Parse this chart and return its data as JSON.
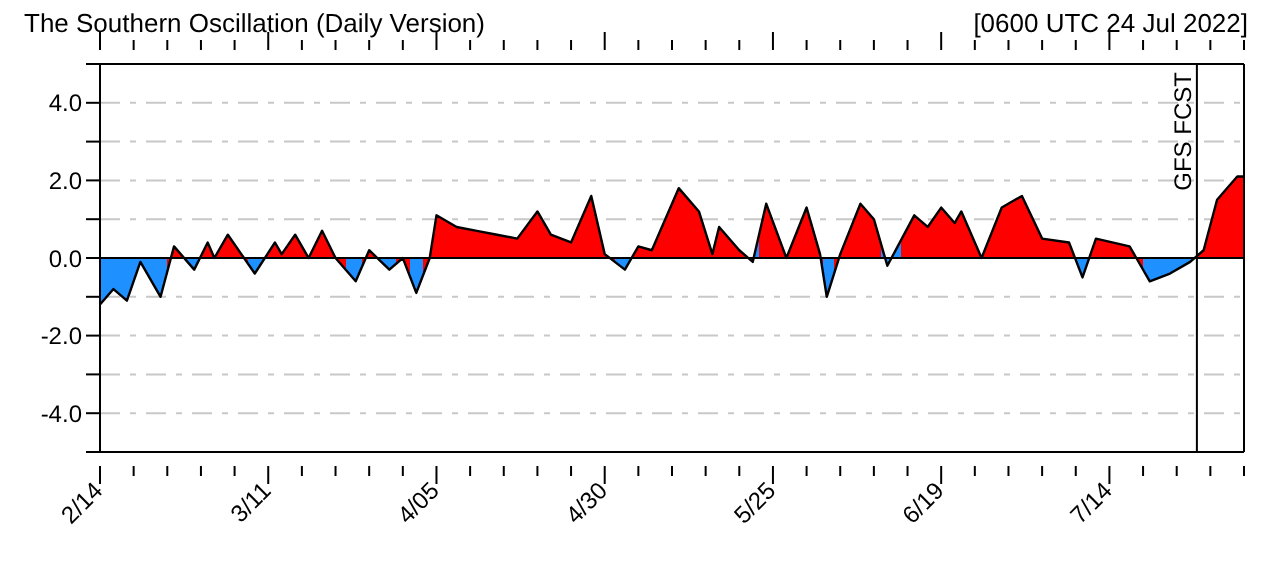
{
  "chart_data": {
    "type": "area",
    "title": "The Southern Oscillation (Daily Version)",
    "subtitle": "[0600 UTC 24 Jul 2022]",
    "x": [
      "--02-14",
      "--02-16",
      "--02-18",
      "--02-20",
      "--02-23",
      "--02-25",
      "--02-28",
      "--03-02",
      "--03-03",
      "--03-05",
      "--03-07",
      "--03-09",
      "--03-12",
      "--03-13",
      "--03-15",
      "--03-17",
      "--03-19",
      "--03-21",
      "--03-24",
      "--03-26",
      "--03-29",
      "--03-31",
      "--04-02",
      "--04-04",
      "--04-05",
      "--04-08",
      "--04-11",
      "--04-14",
      "--04-17",
      "--04-20",
      "--04-22",
      "--04-25",
      "--04-28",
      "--04-30",
      "--05-03",
      "--05-05",
      "--05-07",
      "--05-11",
      "--05-14",
      "--05-16",
      "--05-17",
      "--05-20",
      "--05-22",
      "--05-24",
      "--05-27",
      "--05-30",
      "--06-01",
      "--06-02",
      "--06-04",
      "--06-07",
      "--06-09",
      "--06-11",
      "--06-15",
      "--06-17",
      "--06-19",
      "--06-21",
      "--06-22",
      "--06-25",
      "--06-28",
      "--07-01",
      "--07-04",
      "--07-08",
      "--07-10",
      "--07-12",
      "--07-17",
      "--07-18",
      "--07-20",
      "--07-23",
      "--07-26",
      "--07-28",
      "--07-30",
      "--08-02",
      "--08-03"
    ],
    "series": [
      {
        "values": [
          -1.2,
          -0.8,
          -1.1,
          -0.1,
          -1.0,
          0.3,
          -0.3,
          0.4,
          0.0,
          0.6,
          0.1,
          -0.4,
          0.4,
          0.1,
          0.6,
          0.0,
          0.7,
          0.0,
          -0.6,
          0.2,
          -0.3,
          0.0,
          -0.9,
          0.0,
          1.1,
          0.8,
          0.7,
          0.6,
          0.5,
          1.2,
          0.6,
          0.4,
          1.6,
          0.1,
          -0.3,
          0.3,
          0.2,
          1.8,
          1.2,
          0.1,
          0.8,
          0.2,
          -0.1,
          1.4,
          0.0,
          1.3,
          0.1,
          -1.0,
          0.1,
          1.4,
          1.0,
          -0.2,
          1.1,
          0.8,
          1.3,
          0.9,
          1.2,
          0.0,
          1.3,
          1.6,
          0.5,
          0.4,
          -0.5,
          0.5,
          0.3,
          0.0,
          -0.6,
          -0.4,
          -0.1,
          0.2,
          1.5,
          2.1,
          2.1
        ],
        "colors": [
          "#1e90ff",
          "#1e90ff",
          "#1e90ff",
          "#1e90ff",
          "#1e90ff",
          "#ff0000",
          "#1e90ff",
          "#ff0000",
          "#ff0000",
          "#ff0000",
          "#ff0000",
          "#1e90ff",
          "#ff0000",
          "#ff0000",
          "#ff0000",
          "#ff0000",
          "#ff0000",
          "#ff0000",
          "#1e90ff",
          "#ff0000",
          "#1e90ff",
          "#ff0000",
          "#1e90ff",
          "#ff0000",
          "#ff0000",
          "#ff0000",
          "#ff0000",
          "#ff0000",
          "#ff0000",
          "#ff0000",
          "#ff0000",
          "#ff0000",
          "#ff0000",
          "#ff0000",
          "#1e90ff",
          "#ff0000",
          "#ff0000",
          "#ff0000",
          "#ff0000",
          "#ff0000",
          "#ff0000",
          "#ff0000",
          "#1e90ff",
          "#ff0000",
          "#ff0000",
          "#ff0000",
          "#ff0000",
          "#1e90ff",
          "#ff0000",
          "#ff0000",
          "#ff0000",
          "#1e90ff",
          "#ff0000",
          "#ff0000",
          "#ff0000",
          "#ff0000",
          "#ff0000",
          "#ff0000",
          "#ff0000",
          "#ff0000",
          "#ff0000",
          "#ff0000",
          "#1e90ff",
          "#ff0000",
          "#ff0000",
          "#ff0000",
          "#1e90ff",
          "#1e90ff",
          "#1e90ff",
          "#ff0000",
          "#ff0000",
          "#ff0000",
          "#ff0000"
        ]
      }
    ],
    "xlim": [
      "--02-14",
      "--08-03"
    ],
    "xticks": [
      {
        "value": "--02-14",
        "label": "2/14"
      },
      {
        "value": "--02-19",
        "label": null
      },
      {
        "value": "--02-24",
        "label": null
      },
      {
        "value": "--03-01",
        "label": null
      },
      {
        "value": "--03-06",
        "label": null
      },
      {
        "value": "--03-11",
        "label": "3/11"
      },
      {
        "value": "--03-16",
        "label": null
      },
      {
        "value": "--03-21",
        "label": null
      },
      {
        "value": "--03-26",
        "label": null
      },
      {
        "value": "--03-31",
        "label": null
      },
      {
        "value": "--04-05",
        "label": "4/05"
      },
      {
        "value": "--04-10",
        "label": null
      },
      {
        "value": "--04-15",
        "label": null
      },
      {
        "value": "--04-20",
        "label": null
      },
      {
        "value": "--04-25",
        "label": null
      },
      {
        "value": "--04-30",
        "label": "4/30"
      },
      {
        "value": "--05-05",
        "label": null
      },
      {
        "value": "--05-10",
        "label": null
      },
      {
        "value": "--05-15",
        "label": null
      },
      {
        "value": "--05-20",
        "label": null
      },
      {
        "value": "--05-25",
        "label": "5/25"
      },
      {
        "value": "--05-30",
        "label": null
      },
      {
        "value": "--06-04",
        "label": null
      },
      {
        "value": "--06-09",
        "label": null
      },
      {
        "value": "--06-14",
        "label": null
      },
      {
        "value": "--06-19",
        "label": "6/19"
      },
      {
        "value": "--06-24",
        "label": null
      },
      {
        "value": "--06-29",
        "label": null
      },
      {
        "value": "--07-04",
        "label": null
      },
      {
        "value": "--07-09",
        "label": null
      },
      {
        "value": "--07-14",
        "label": "7/14"
      },
      {
        "value": "--07-19",
        "label": null
      },
      {
        "value": "--07-24",
        "label": null
      },
      {
        "value": "--07-29",
        "label": null
      },
      {
        "value": "--08-03",
        "label": null
      }
    ],
    "ylim": [
      -5,
      5
    ],
    "yticks": [
      {
        "value": -5,
        "label": null
      },
      {
        "value": -4,
        "label": "-4.0"
      },
      {
        "value": -3,
        "label": null
      },
      {
        "value": -2,
        "label": "-2.0"
      },
      {
        "value": -1,
        "label": null
      },
      {
        "value": 0,
        "label": "0.0"
      },
      {
        "value": 1,
        "label": null
      },
      {
        "value": 2,
        "label": "2.0"
      },
      {
        "value": 3,
        "label": null
      },
      {
        "value": 4,
        "label": "4.0"
      },
      {
        "value": 5,
        "label": null
      }
    ],
    "grid": "y",
    "ref_lines": [
      {
        "axis": "y",
        "value": 0,
        "color": "#000000"
      },
      {
        "axis": "x",
        "value": "--07-27",
        "label": "GFS FCST",
        "color": "#000000"
      }
    ]
  }
}
